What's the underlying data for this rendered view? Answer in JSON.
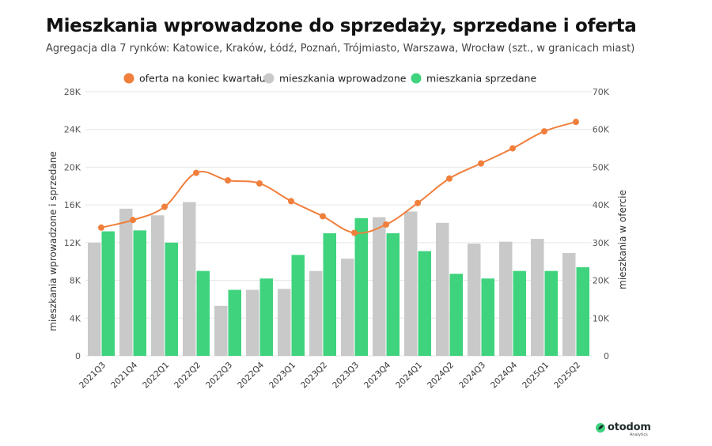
{
  "title": "Mieszkania wprowadzone do sprzedaży, sprzedane i oferta",
  "subtitle": "Agregacja dla 7 rynków: Katowice, Kraków, Łódź, Poznań, Trójmiasto, Warszawa, Wrocław (szt., w granicach miast)",
  "logo": {
    "brand": "otodom",
    "sub": "Analytics",
    "icon": "otodom-leaf-icon"
  },
  "colors": {
    "offer": "#f07f3c",
    "introduced": "#c9c9c9",
    "sold": "#3fd37e"
  },
  "chart_data": {
    "type": "bar",
    "categories": [
      "2021Q3",
      "2021Q4",
      "2022Q1",
      "2022Q2",
      "2022Q3",
      "2022Q4",
      "2023Q1",
      "2023Q2",
      "2023Q3",
      "2023Q4",
      "2024Q1",
      "2024Q2",
      "2024Q3",
      "2024Q4",
      "2025Q1",
      "2025Q2"
    ],
    "series": [
      {
        "name": "mieszkania wprowadzone",
        "type": "bar",
        "axis": "left",
        "color": "#c9c9c9",
        "values": [
          12000,
          15600,
          14900,
          16300,
          5300,
          7000,
          7100,
          9000,
          10300,
          14700,
          15300,
          14100,
          11900,
          12100,
          12400,
          10900
        ]
      },
      {
        "name": "mieszkania sprzedane",
        "type": "bar",
        "axis": "left",
        "color": "#3fd37e",
        "values": [
          13200,
          13300,
          12000,
          9000,
          7000,
          8200,
          10700,
          13000,
          14600,
          13000,
          11100,
          8700,
          8200,
          9000,
          9000,
          9400
        ]
      },
      {
        "name": "oferta na koniec kwartału",
        "type": "line",
        "axis": "right",
        "color": "#f07f3c",
        "values": [
          34000,
          36000,
          39500,
          48500,
          46500,
          45700,
          41000,
          37000,
          32600,
          34800,
          40500,
          47000,
          51000,
          55000,
          59500,
          62000
        ]
      }
    ],
    "legend_order": [
      "oferta na koniec kwartału",
      "mieszkania wprowadzone",
      "mieszkania sprzedane"
    ],
    "legend_position": "top",
    "ylabel": "mieszkania wprowadzone i sprzedane",
    "y2label": "mieszkania w ofercie",
    "ylim": [
      0,
      28000
    ],
    "y2lim": [
      0,
      70000
    ],
    "yticks": [
      "0",
      "4K",
      "8K",
      "12K",
      "16K",
      "20K",
      "24K",
      "28K"
    ],
    "y2ticks": [
      "0",
      "10K",
      "20K",
      "30K",
      "40K",
      "50K",
      "60K",
      "70K"
    ],
    "grid": true
  }
}
